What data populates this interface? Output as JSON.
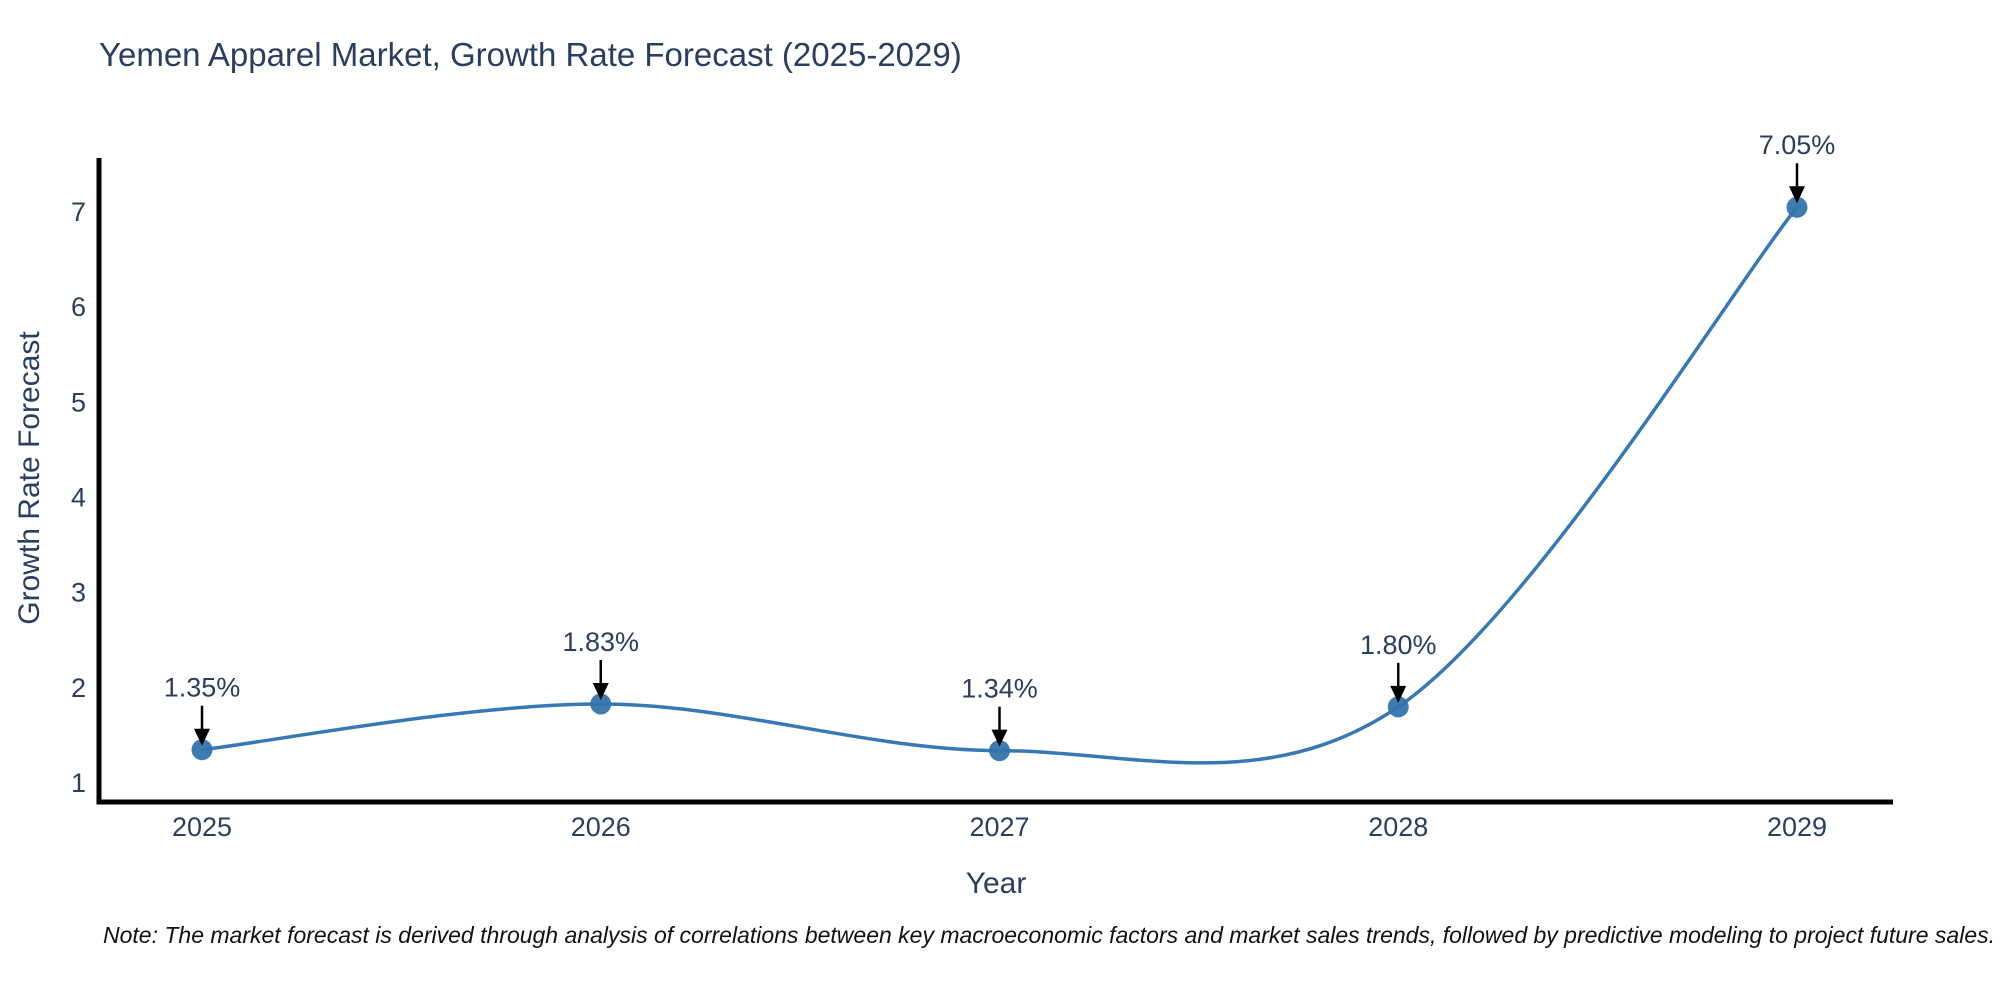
{
  "chart_data": {
    "type": "line",
    "title": "Yemen Apparel Market, Growth Rate Forecast (2025-2029)",
    "xlabel": "Year",
    "ylabel": "Growth Rate Forecast",
    "categories": [
      "2025",
      "2026",
      "2027",
      "2028",
      "2029"
    ],
    "series": [
      {
        "name": "Growth Rate Forecast",
        "values": [
          1.35,
          1.83,
          1.34,
          1.8,
          7.05
        ]
      }
    ],
    "point_labels": [
      "1.35%",
      "1.83%",
      "1.34%",
      "1.80%",
      "7.05%"
    ],
    "y_ticks": [
      1,
      2,
      3,
      4,
      5,
      6,
      7
    ],
    "ylim": [
      0.8,
      7.6
    ],
    "line_shape": "spline",
    "grid": false,
    "legend_position": "none",
    "annotation_style": "black-down-arrows",
    "colors": {
      "line": "#3878b4",
      "marker": "#3474ad",
      "axis": "#000000",
      "tick_text": "#2a3f5f",
      "annotation_text": "#2a3f5f",
      "annotation_arrow": "#000000",
      "background": "#ffffff"
    },
    "note": "Note: The market forecast is derived through analysis of correlations between key macroeconomic factors and market sales trends, followed by predictive modeling to project future sales."
  }
}
